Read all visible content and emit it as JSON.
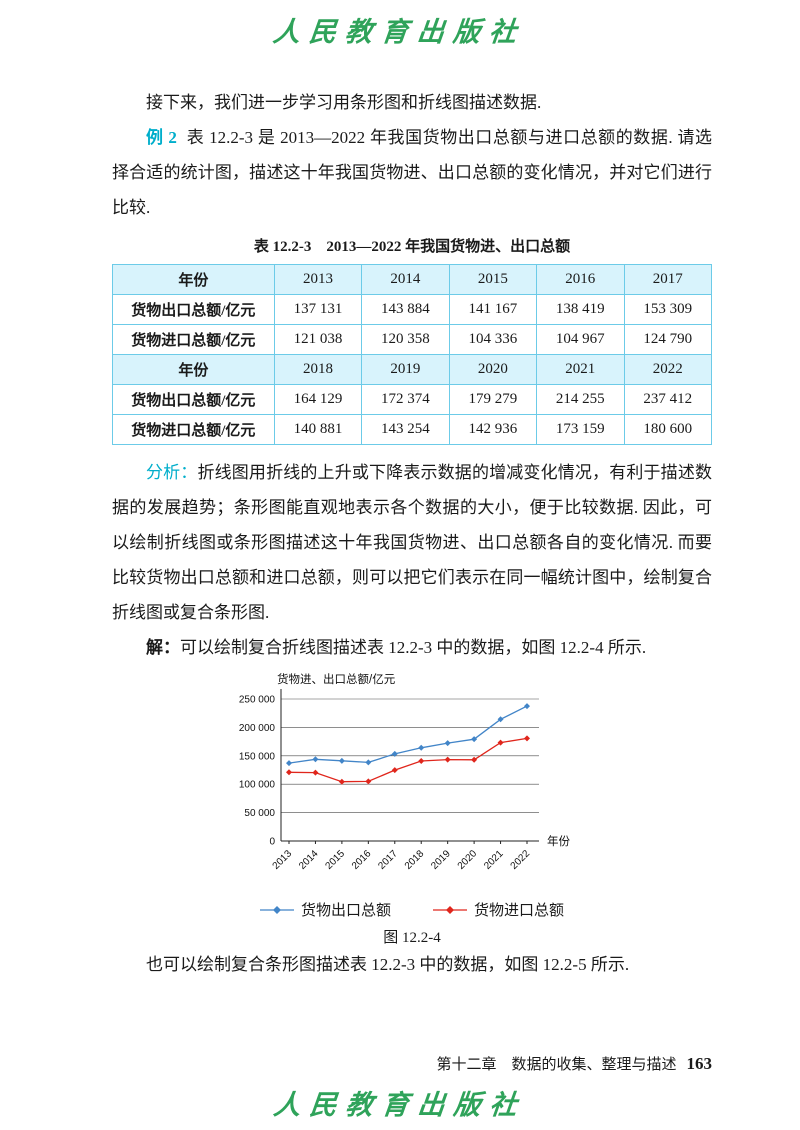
{
  "page": {
    "brand_top": "人民教育出版社",
    "brand_bottom": "人民教育出版社"
  },
  "paragraphs": {
    "intro": "接下来，我们进一步学习用条形图和折线图描述数据.",
    "example_label": "例 2",
    "example_body": "表 12.2-3 是 2013—2022 年我国货物出口总额与进口总额的数据. 请选择合适的统计图，描述这十年我国货物进、出口总额的变化情况，并对它们进行比较.",
    "analysis_label": "分析：",
    "analysis_body": "折线图用折线的上升或下降表示数据的增减变化情况，有利于描述数据的发展趋势；条形图能直观地表示各个数据的大小，便于比较数据. 因此，可以绘制折线图或条形图描述这十年我国货物进、出口总额各自的变化情况. 而要比较货物出口总额和进口总额，则可以把它们表示在同一幅统计图中，绘制复合折线图或复合条形图.",
    "solution_label": "解：",
    "solution_body": "可以绘制复合折线图描述表 12.2-3 中的数据，如图 12.2-4 所示.",
    "closing": "也可以绘制复合条形图描述表 12.2-3 中的数据，如图 12.2-5 所示."
  },
  "table": {
    "caption": "表 12.2-3　2013—2022 年我国货物进、出口总额",
    "rows": [
      {
        "type": "header",
        "cells": [
          "年份",
          "2013",
          "2014",
          "2015",
          "2016",
          "2017"
        ]
      },
      {
        "type": "data",
        "cells": [
          "货物出口总额/亿元",
          "137 131",
          "143 884",
          "141 167",
          "138 419",
          "153 309"
        ]
      },
      {
        "type": "data",
        "cells": [
          "货物进口总额/亿元",
          "121 038",
          "120 358",
          "104 336",
          "104 967",
          "124 790"
        ]
      },
      {
        "type": "header",
        "cells": [
          "年份",
          "2018",
          "2019",
          "2020",
          "2021",
          "2022"
        ]
      },
      {
        "type": "data",
        "cells": [
          "货物出口总额/亿元",
          "164 129",
          "172 374",
          "179 279",
          "214 255",
          "237 412"
        ]
      },
      {
        "type": "data",
        "cells": [
          "货物进口总额/亿元",
          "140 881",
          "143 254",
          "142 936",
          "173 159",
          "180 600"
        ]
      }
    ]
  },
  "chart_data": {
    "type": "line",
    "title": "",
    "ylabel": "货物进、出口总额/亿元",
    "xlabel": "年份",
    "categories": [
      "2013",
      "2014",
      "2015",
      "2016",
      "2017",
      "2018",
      "2019",
      "2020",
      "2021",
      "2022"
    ],
    "series": [
      {
        "name": "货物出口总额",
        "color": "#4285c8",
        "values": [
          137131,
          143884,
          141167,
          138419,
          153309,
          164129,
          172374,
          179279,
          214255,
          237412
        ]
      },
      {
        "name": "货物进口总额",
        "color": "#e0261c",
        "values": [
          121038,
          120358,
          104336,
          104967,
          124790,
          140881,
          143254,
          142936,
          173159,
          180600
        ]
      }
    ],
    "ylim": [
      0,
      250000
    ],
    "yticks": [
      0,
      50000,
      100000,
      150000,
      200000,
      250000
    ],
    "ytick_labels": [
      "0",
      "50 000",
      "100 000",
      "150 000",
      "200 000",
      "250 000"
    ],
    "grid": true,
    "legend_position": "bottom",
    "marker": "diamond"
  },
  "figure_caption": "图 12.2-4",
  "footer": {
    "chapter": "第十二章　数据的收集、整理与描述",
    "page_number": "163"
  }
}
